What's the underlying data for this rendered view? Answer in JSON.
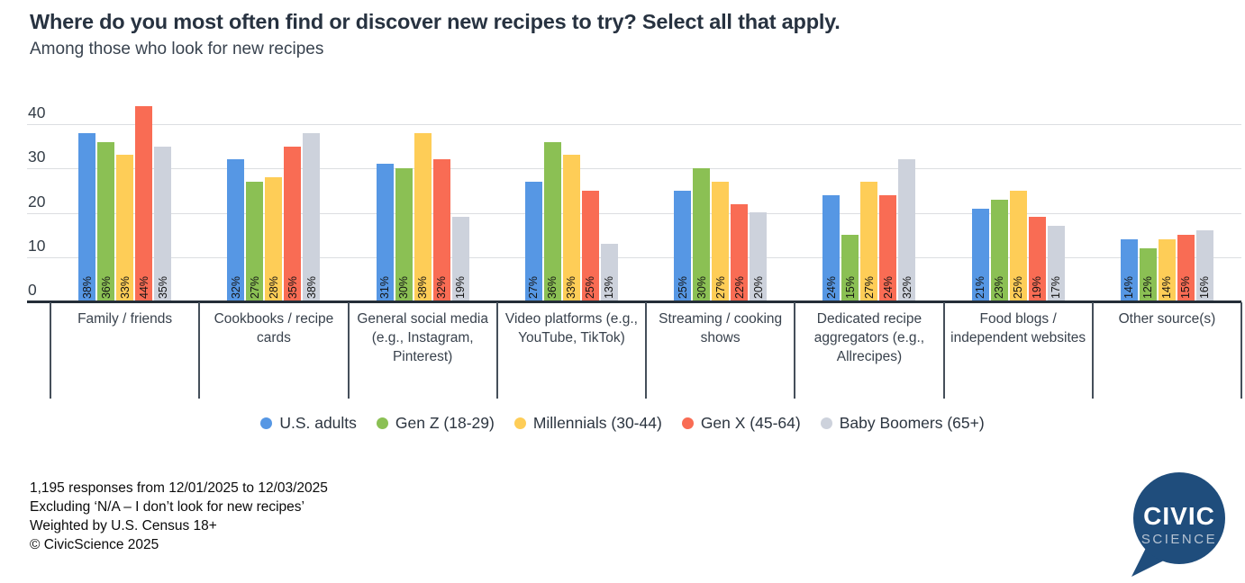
{
  "title": "Where do you most often find or discover new recipes to try? Select all that apply.",
  "subtitle": "Among those who look for new recipes",
  "chart_data": {
    "type": "bar",
    "title": "Where do you most often find or discover new recipes to try? Select all that apply.",
    "subtitle": "Among those who look for new recipes",
    "categories": [
      "Family / friends",
      "Cookbooks / recipe cards",
      "General social media (e.g., Instagram, Pinterest)",
      "Video platforms (e.g., YouTube, TikTok)",
      "Streaming / cooking shows",
      "Dedicated recipe aggregators (e.g., Allrecipes)",
      "Food blogs / independent websites",
      "Other source(s)"
    ],
    "series": [
      {
        "name": "U.S. adults",
        "color": "#5697e4",
        "values": [
          38,
          32,
          31,
          27,
          25,
          24,
          21,
          14
        ]
      },
      {
        "name": "Gen Z (18-29)",
        "color": "#8bc054",
        "values": [
          36,
          27,
          30,
          36,
          30,
          15,
          23,
          12
        ]
      },
      {
        "name": "Millennials (30-44)",
        "color": "#fecd57",
        "values": [
          33,
          28,
          38,
          33,
          27,
          27,
          25,
          14
        ]
      },
      {
        "name": "Gen X (45-64)",
        "color": "#f96c54",
        "values": [
          44,
          35,
          32,
          25,
          22,
          24,
          19,
          15
        ]
      },
      {
        "name": "Baby Boomers (65+)",
        "color": "#cdd2dc",
        "values": [
          35,
          38,
          19,
          13,
          20,
          32,
          17,
          16
        ]
      }
    ],
    "value_suffix": "%",
    "ylim": [
      0,
      45
    ],
    "yticks": [
      0,
      10,
      20,
      30,
      40
    ],
    "grid": true,
    "legend_position": "bottom"
  },
  "footer": {
    "lines": [
      "1,195 responses from 12/01/2025 to 12/03/2025",
      "Excluding ‘N/A – I don’t look for new recipes’",
      "Weighted by U.S. Census 18+",
      "© CivicScience 2025"
    ]
  },
  "logo": {
    "line1": "CIVIC",
    "line2": "SCIENCE",
    "bubble_color": "#1f4d7c"
  }
}
